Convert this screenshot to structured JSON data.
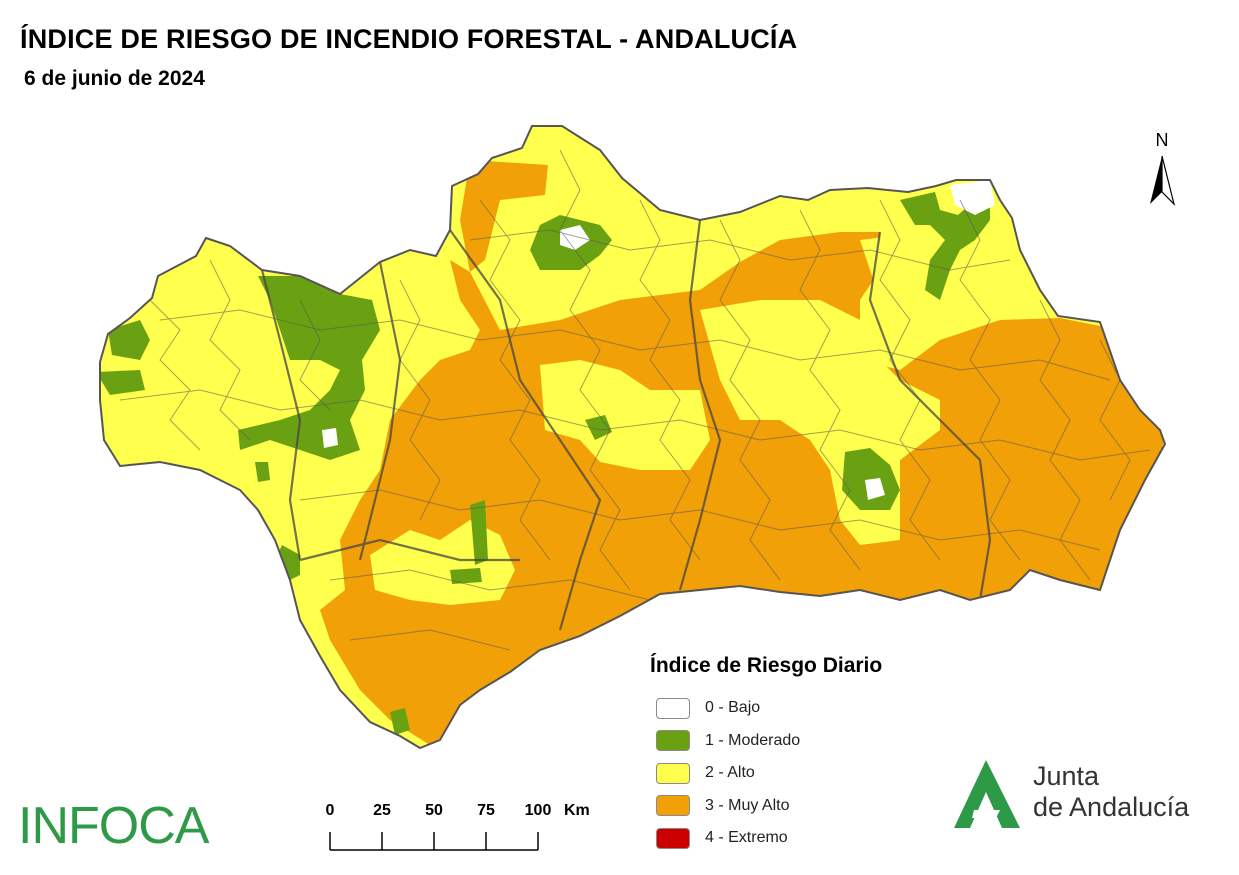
{
  "header": {
    "title": "ÍNDICE DE RIESGO DE INCENDIO FORESTAL - ANDALUCÍA",
    "date": "6 de junio de 2024"
  },
  "north_arrow": {
    "label": "N",
    "icon": "north-arrow-icon"
  },
  "legend": {
    "title": "Índice de Riesgo Diario",
    "items": [
      {
        "label": "0 - Bajo",
        "color": "#ffffff"
      },
      {
        "label": "1 - Moderado",
        "color": "#6aa112"
      },
      {
        "label": "2 - Alto",
        "color": "#ffff4d"
      },
      {
        "label": "3 - Muy Alto",
        "color": "#f2a007"
      },
      {
        "label": "4 - Extremo",
        "color": "#cc0000"
      }
    ]
  },
  "scale_bar": {
    "ticks": [
      "0",
      "25",
      "50",
      "75",
      "100"
    ],
    "unit": "Km"
  },
  "logos": {
    "infoca": "INFOCA",
    "junta_line1": "Junta",
    "junta_line2": "de Andalucía",
    "junta_color": "#2e9a47"
  }
}
